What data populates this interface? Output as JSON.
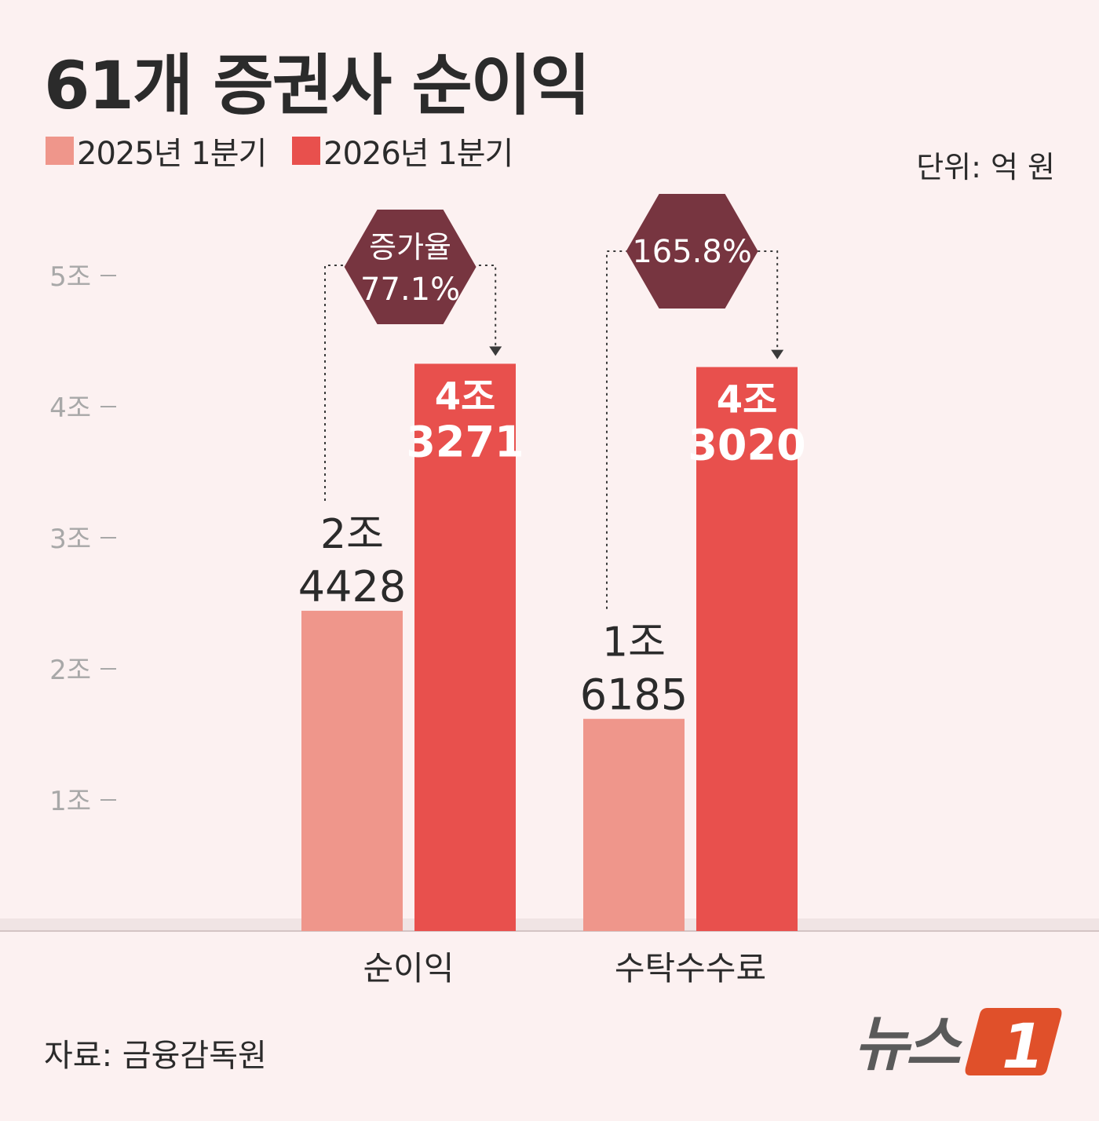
{
  "title": "61개 증권사 순이익",
  "legend": [
    {
      "label": "2025년 1분기",
      "color": "#ef968b"
    },
    {
      "label": "2026년 1분기",
      "color": "#e8504d"
    }
  ],
  "unit": "단위: 억 원",
  "source": "자료: 금융감독원",
  "logo": {
    "text": "뉴스",
    "mark": "1"
  },
  "colors": {
    "background": "#fcf1f1",
    "prev": "#ef968b",
    "curr": "#e8504d",
    "badge": "#773540",
    "axis_text": "#a8a8a8"
  },
  "chart_data": {
    "type": "bar",
    "categories": [
      "순이익",
      "수탁수수료"
    ],
    "series": [
      {
        "name": "2025년 1분기",
        "values": [
          24428,
          16185
        ],
        "labels": [
          [
            "2조",
            "4428"
          ],
          [
            "1조",
            "6185"
          ]
        ]
      },
      {
        "name": "2026년 1분기",
        "values": [
          43271,
          43020
        ],
        "labels": [
          [
            "4조",
            "3271"
          ],
          [
            "4조",
            "3020"
          ]
        ]
      }
    ],
    "ylim": [
      0,
      50000
    ],
    "yticks": [
      {
        "value": 10000,
        "label": "1조"
      },
      {
        "value": 20000,
        "label": "2조"
      },
      {
        "value": 30000,
        "label": "3조"
      },
      {
        "value": 40000,
        "label": "4조"
      },
      {
        "value": 50000,
        "label": "5조"
      }
    ],
    "growth": [
      {
        "lines": [
          "증가율",
          "77.1%"
        ]
      },
      {
        "lines": [
          "165.8%"
        ]
      }
    ],
    "grid": false,
    "legend_position": "top-left"
  }
}
